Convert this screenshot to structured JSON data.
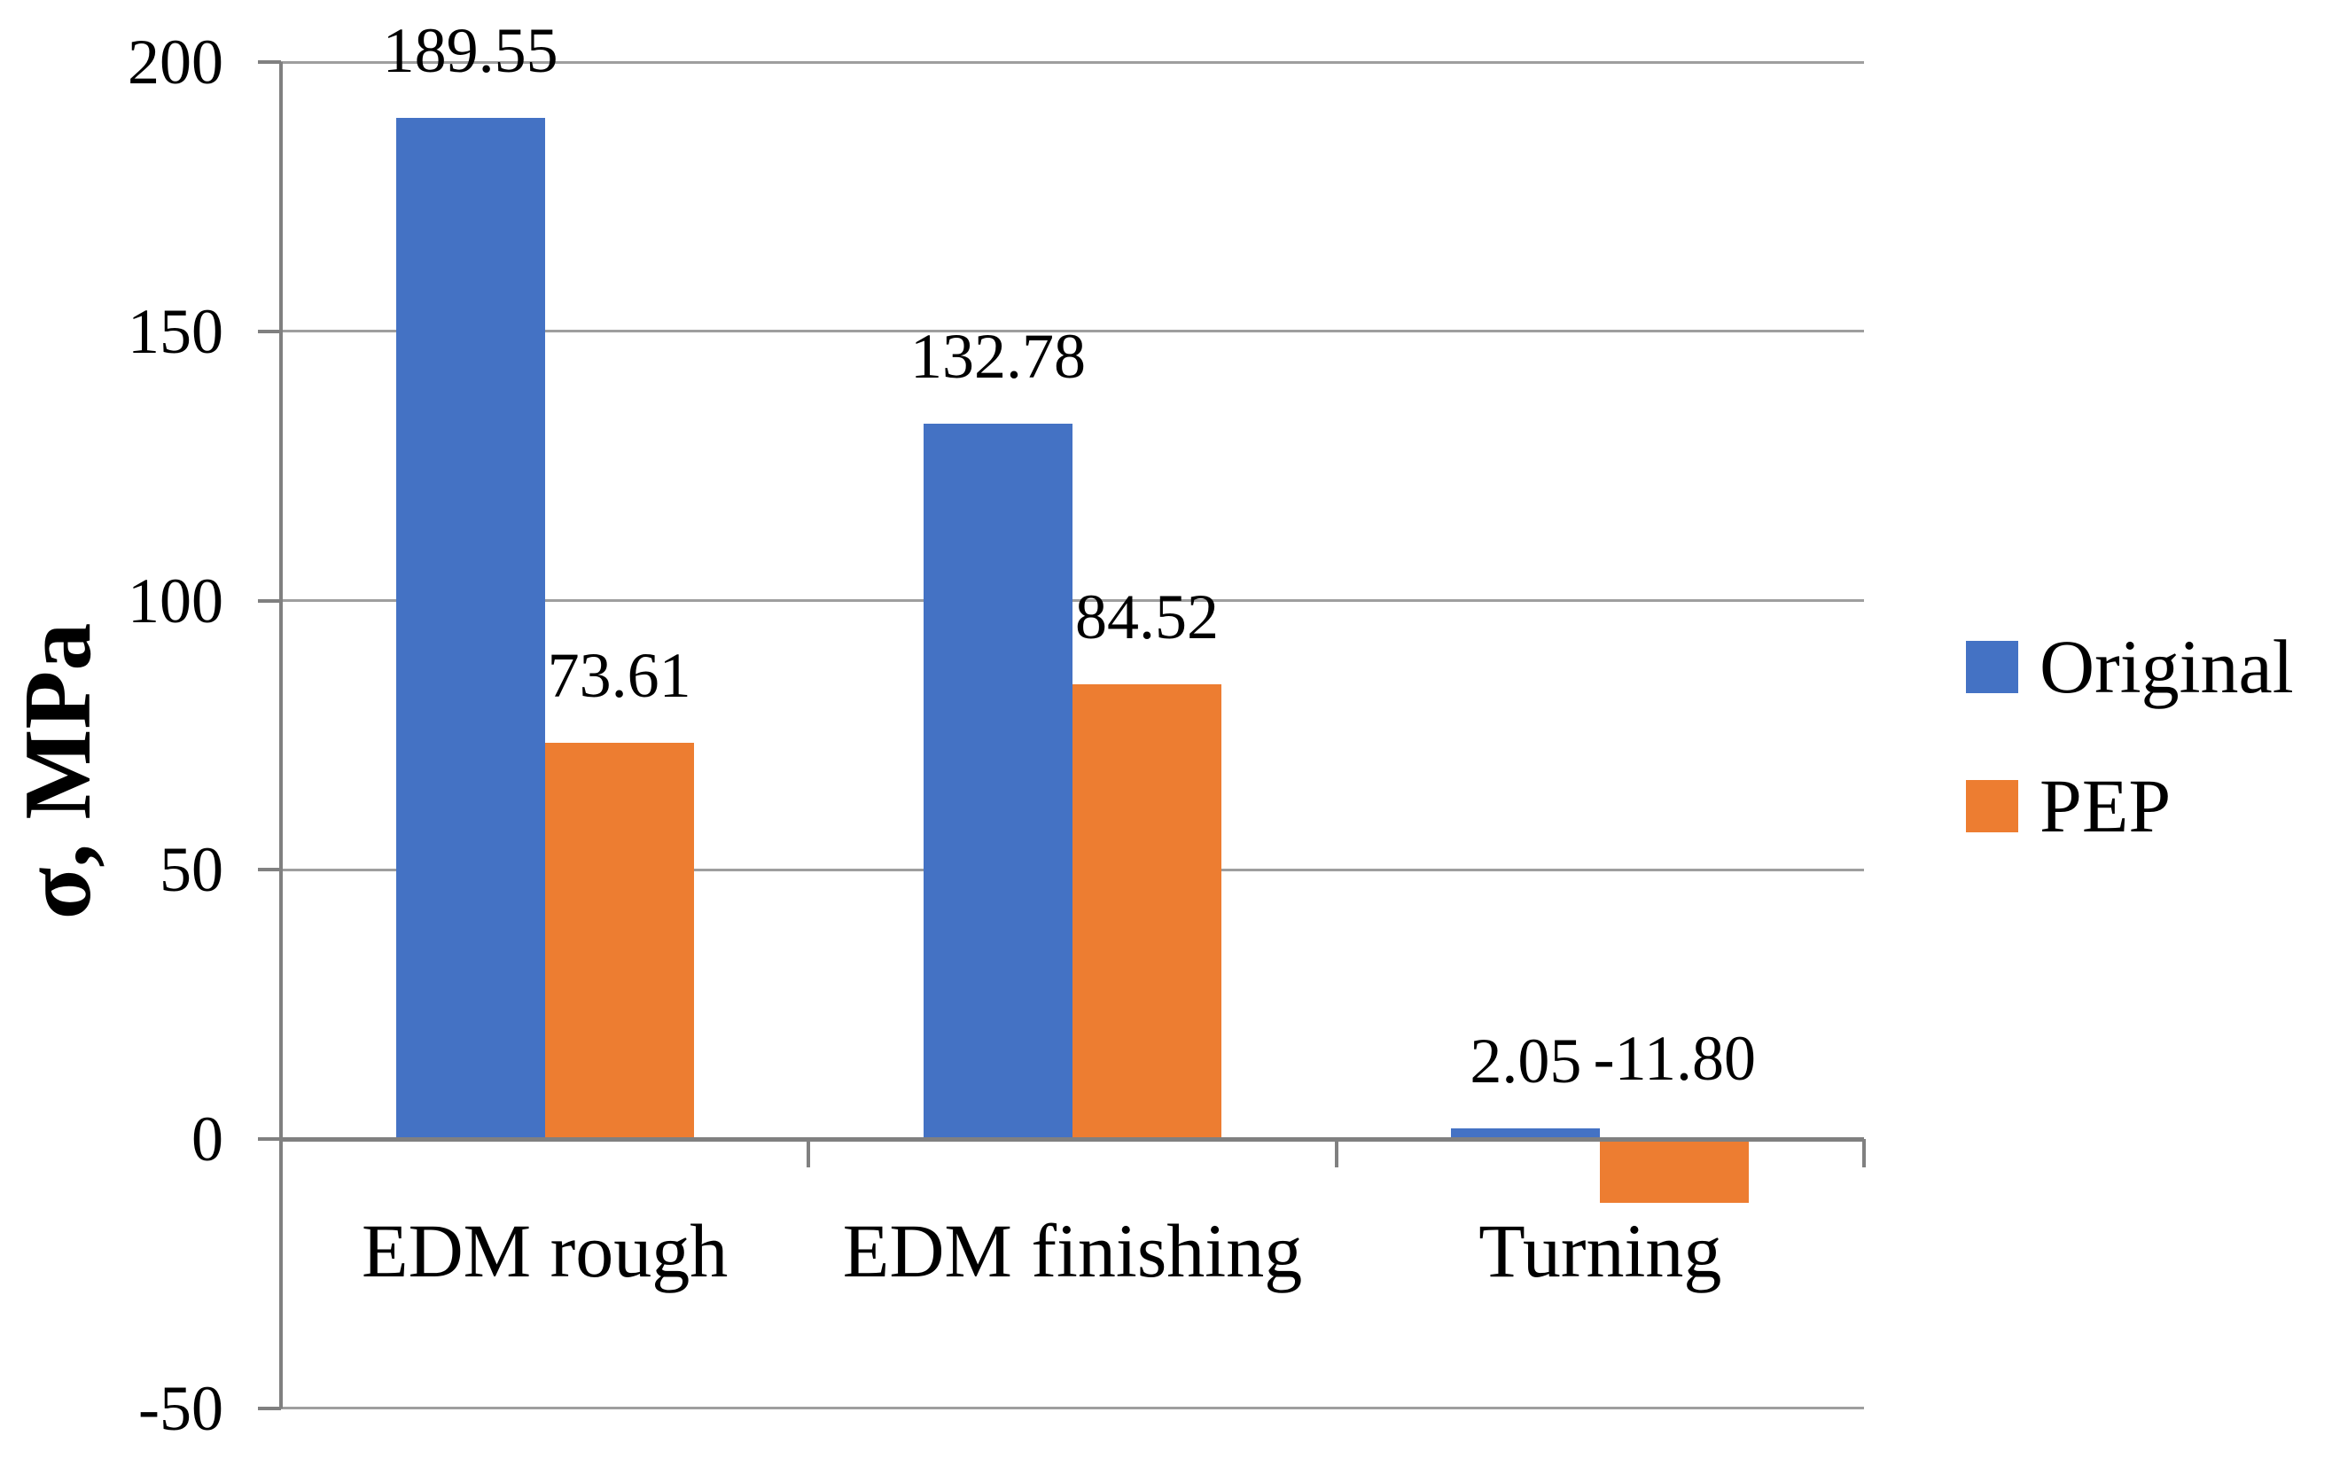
{
  "chart_data": {
    "type": "bar",
    "title": "",
    "ylabel": "σ, MPa",
    "xlabel": "",
    "categories": [
      "EDM rough",
      "EDM finishing",
      "Turning"
    ],
    "series": [
      {
        "name": "Original",
        "color": "#4472C4",
        "values": [
          189.55,
          132.78,
          2.05
        ],
        "labels": [
          "189.55",
          "132.78",
          "2.05"
        ]
      },
      {
        "name": "PEP",
        "color": "#ED7D31",
        "values": [
          73.61,
          84.52,
          -11.8
        ],
        "labels": [
          "73.61",
          "84.52",
          "-11.80"
        ]
      }
    ],
    "y_axis": {
      "min": -50,
      "max": 200,
      "step": 50,
      "tick_labels": [
        "200",
        "150",
        "100",
        "50",
        "0",
        "-50"
      ]
    },
    "grid": true,
    "legend_position": "right",
    "data_labels": "outside-end"
  },
  "colors": {
    "background": "#FFFFFF",
    "gridline": "#9E9E9E",
    "axis": "#808080",
    "text": "#000000",
    "series_original": "#4472C4",
    "series_pep": "#ED7D31"
  }
}
